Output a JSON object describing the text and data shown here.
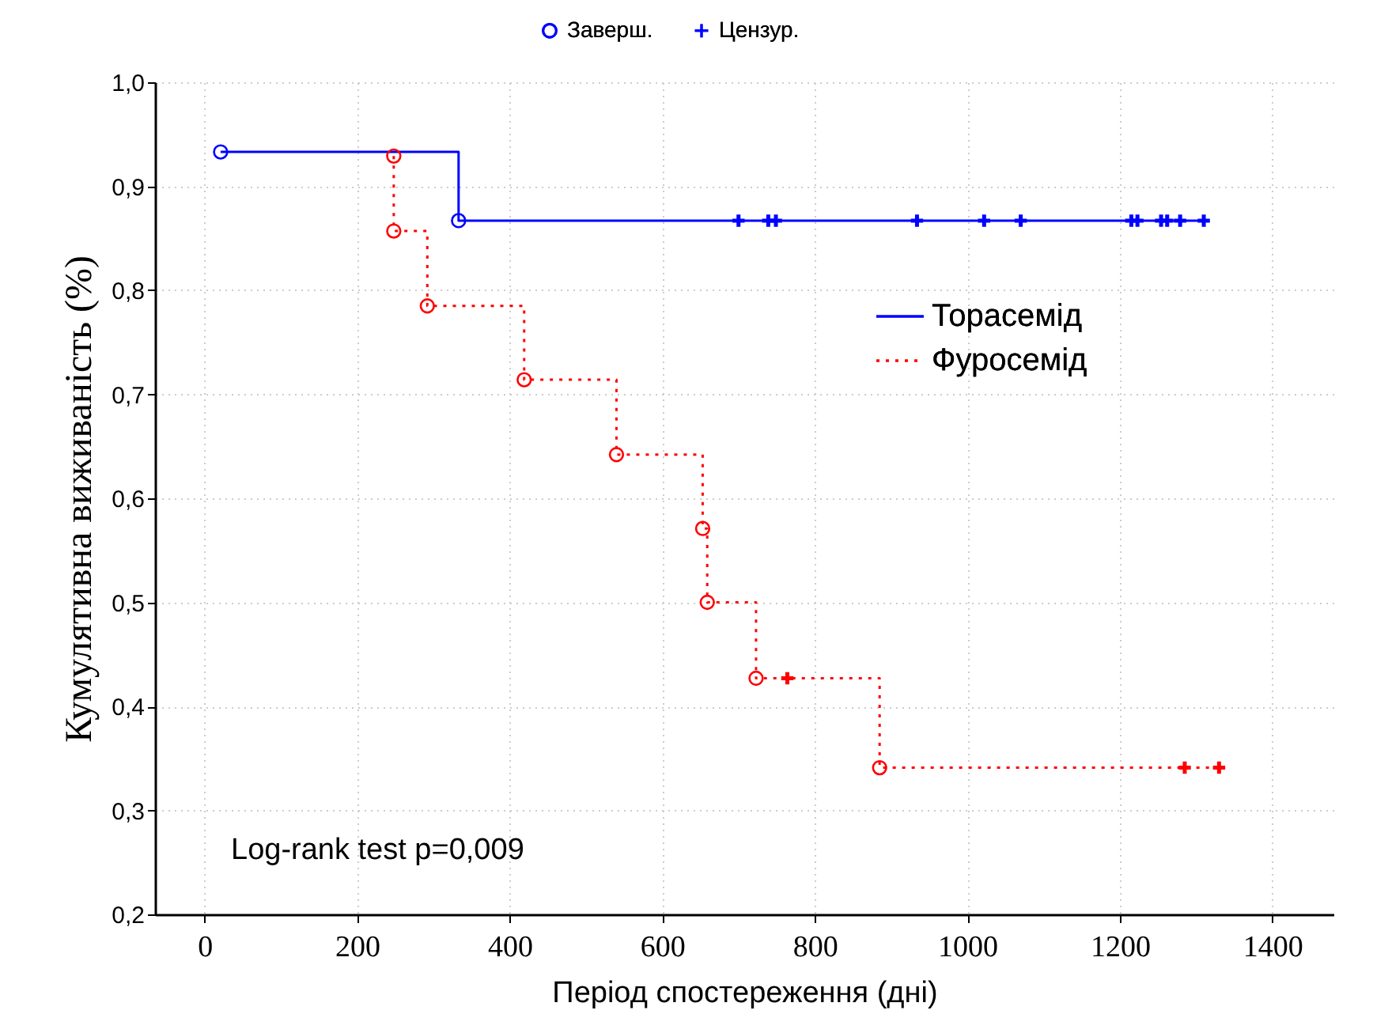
{
  "chart_data": {
    "type": "step",
    "xlabel": "Період спостереження (дні)",
    "ylabel": "Кумулятивна виживаність (%)",
    "xlim": [
      -65,
      1480
    ],
    "ylim": [
      0.2,
      1.0
    ],
    "xticks": [
      0,
      200,
      400,
      600,
      800,
      1000,
      1200,
      1400
    ],
    "yticks": [
      {
        "value": 0.2,
        "label": "0,2"
      },
      {
        "value": 0.3,
        "label": "0,3"
      },
      {
        "value": 0.4,
        "label": "0,4"
      },
      {
        "value": 0.5,
        "label": "0,5"
      },
      {
        "value": 0.6,
        "label": "0,6"
      },
      {
        "value": 0.7,
        "label": "0,7"
      },
      {
        "value": 0.8,
        "label": "0,8"
      },
      {
        "value": 0.9,
        "label": "0,9"
      },
      {
        "value": 1.0,
        "label": "1,0"
      }
    ],
    "grid": true,
    "legend": "top",
    "annotations": [
      "Log-rank test p=0,009"
    ],
    "series": [
      {
        "name": "Торасемід",
        "color": "#0000ff",
        "line_style": "solid",
        "marker": "none",
        "x": [
          21,
          333,
          1310
        ],
        "values": [
          0.933,
          0.867,
          0.867
        ]
      },
      {
        "name": "Фуросемід",
        "color": "#ff0000",
        "line_style": "dotted",
        "marker": "none",
        "x": [
          248,
          248,
          292,
          419,
          540,
          653,
          659,
          723,
          885,
          1330
        ],
        "values": [
          0.929,
          0.857,
          0.785,
          0.714,
          0.642,
          0.571,
          0.5,
          0.427,
          0.341,
          0.341
        ]
      },
      {
        "name": "Заверш.",
        "type": "scatter",
        "color": "#0000ff",
        "marker": "circle",
        "x": [
          21,
          333
        ],
        "values": [
          0.933,
          0.867
        ]
      },
      {
        "type": "scatter",
        "color": "#ff0000",
        "marker": "circle",
        "x": [
          248,
          248,
          292,
          419,
          540,
          653,
          659,
          723,
          885
        ],
        "values": [
          0.929,
          0.857,
          0.785,
          0.714,
          0.642,
          0.571,
          0.5,
          0.427,
          0.341
        ]
      },
      {
        "name": "Цензур.",
        "type": "scatter",
        "color": "#0000ff",
        "marker": "cross",
        "x": [
          700,
          739,
          749,
          934,
          1022,
          1070,
          1215,
          1223,
          1254,
          1262,
          1279,
          1310
        ],
        "values": [
          0.867,
          0.867,
          0.867,
          0.867,
          0.867,
          0.867,
          0.867,
          0.867,
          0.867,
          0.867,
          0.867,
          0.867
        ]
      },
      {
        "type": "scatter",
        "color": "#ff0000",
        "marker": "cross",
        "x": [
          764,
          1285,
          1330
        ],
        "values": [
          0.427,
          0.341,
          0.341
        ]
      }
    ]
  }
}
